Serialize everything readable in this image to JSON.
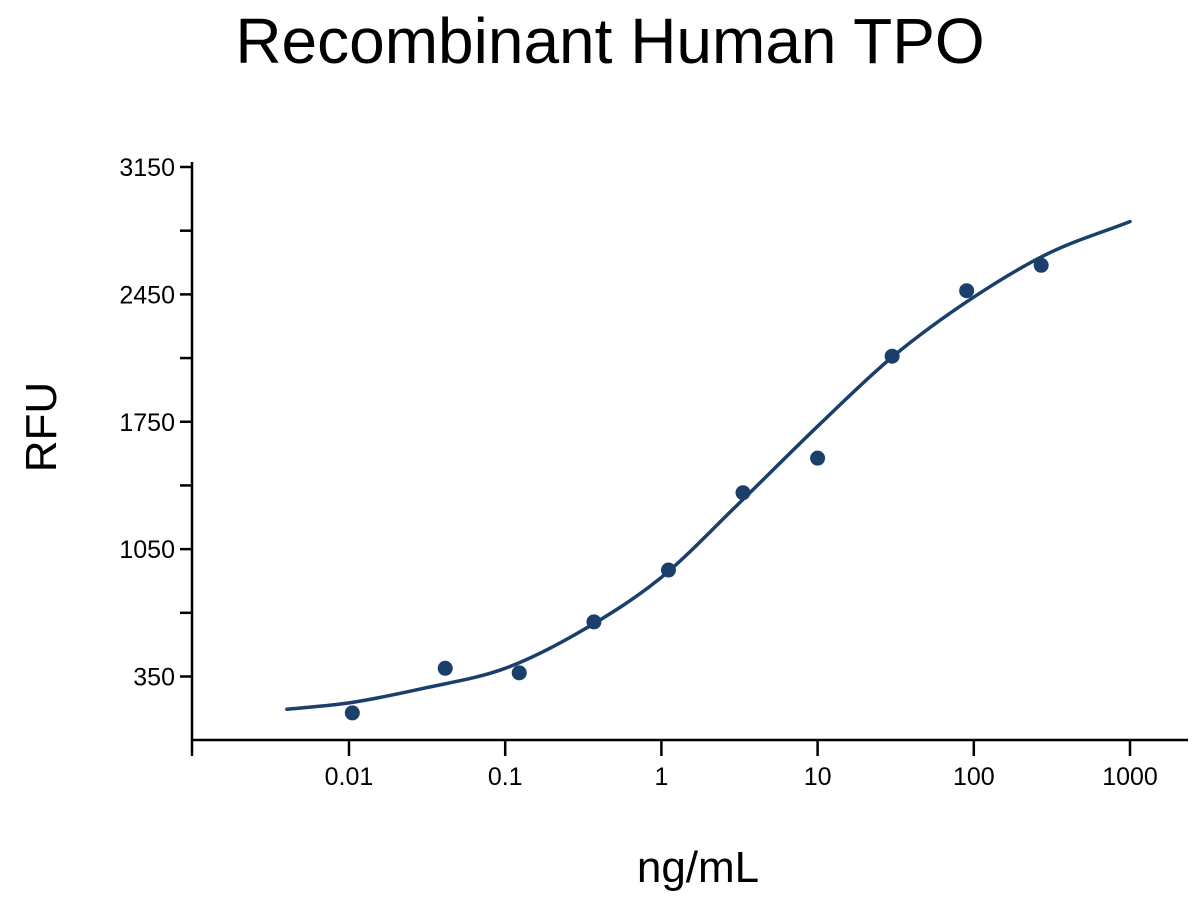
{
  "chart_data": {
    "type": "scatter",
    "title": "Recombinant Human TPO",
    "xlabel": "ng/mL",
    "ylabel": "RFU",
    "x_scale": "log",
    "xlim": [
      0.004,
      1800
    ],
    "ylim": [
      0,
      3150
    ],
    "x_ticks": [
      0.01,
      0.1,
      1,
      10,
      100,
      1000
    ],
    "x_tick_labels": [
      "0.01",
      "0.1",
      "1",
      "10",
      "100",
      "1000"
    ],
    "y_ticks": [
      350,
      700,
      1050,
      1400,
      1750,
      2100,
      2450,
      2800,
      3150
    ],
    "y_tick_labels": [
      "350",
      "",
      "1050",
      "",
      "1750",
      "",
      "2450",
      "",
      "3150"
    ],
    "grid": false,
    "legend": "none",
    "colors": {
      "series": "#1b3f6b",
      "axis": "#000000"
    },
    "series": [
      {
        "kind": "points",
        "x": [
          0.0105,
          0.0413,
          0.123,
          0.37,
          1.11,
          3.33,
          10,
          30,
          90,
          270
        ],
        "y": [
          150,
          395,
          370,
          650,
          935,
          1360,
          1550,
          2110,
          2470,
          2610
        ]
      },
      {
        "kind": "fit-curve",
        "x": [
          0.004,
          0.01,
          0.03,
          0.1,
          0.3,
          1,
          3,
          10,
          30,
          100,
          300,
          1000
        ],
        "y": [
          170,
          205,
          285,
          395,
          595,
          895,
          1285,
          1725,
          2105,
          2435,
          2675,
          2850
        ]
      }
    ]
  }
}
